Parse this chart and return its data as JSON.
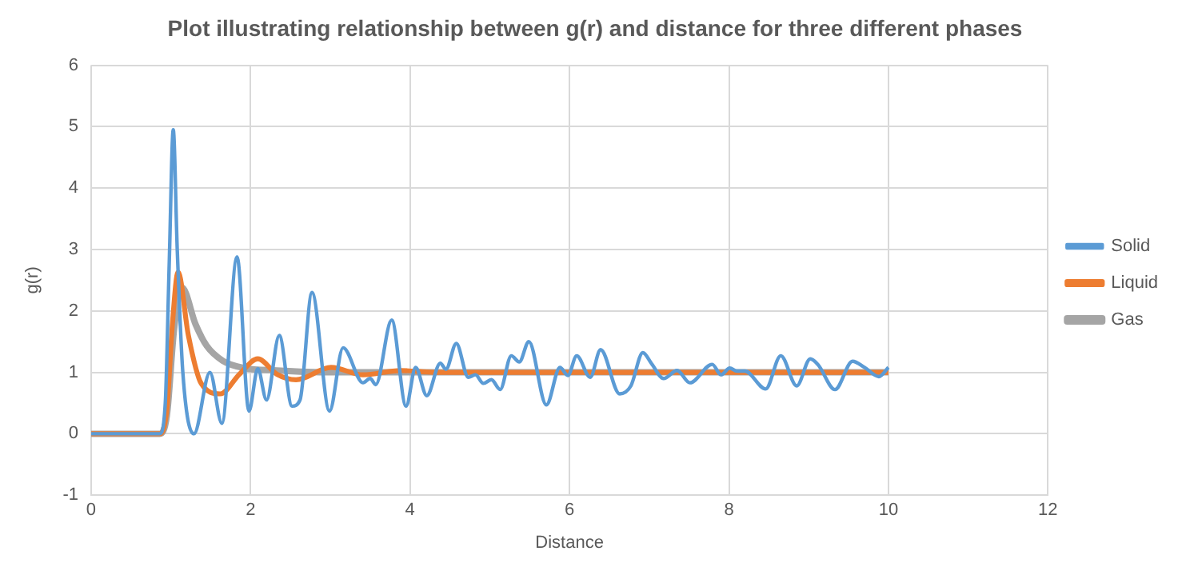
{
  "chart_data": {
    "type": "line",
    "title": "Plot illustrating relationship between g(r) and distance for three different phases",
    "xlabel": "Distance",
    "ylabel": "g(r)",
    "xlim": [
      0,
      12
    ],
    "xticks": [
      0,
      2,
      4,
      6,
      8,
      10,
      12
    ],
    "ylim": [
      -1,
      6
    ],
    "yticks": [
      -1,
      0,
      1,
      2,
      3,
      4,
      5,
      6
    ],
    "grid": true,
    "legend": "right",
    "marker": "none",
    "line_style": "solid",
    "series": [
      {
        "name": "Solid",
        "color": "#5b9bd5",
        "x": [
          0,
          0.86,
          0.93,
          0.98,
          1.03,
          1.08,
          1.15,
          1.29,
          1.49,
          1.64,
          1.83,
          1.98,
          2.09,
          2.2,
          2.36,
          2.52,
          2.62,
          2.77,
          2.99,
          3.16,
          3.41,
          3.5,
          3.57,
          3.77,
          3.95,
          4.07,
          4.21,
          4.38,
          4.45,
          4.58,
          4.73,
          4.82,
          4.92,
          5.02,
          5.13,
          5.27,
          5.37,
          5.49,
          5.71,
          5.88,
          5.98,
          6.09,
          6.26,
          6.39,
          6.63,
          6.77,
          6.92,
          7.03,
          7.18,
          7.35,
          7.51,
          7.79,
          7.9,
          8.01,
          8.1,
          8.2,
          8.46,
          8.65,
          8.85,
          9.02,
          9.12,
          9.33,
          9.55,
          9.7,
          9.88,
          10
        ],
        "values": [
          0,
          0,
          0.5,
          2.8,
          4.95,
          3.0,
          1.0,
          0,
          1.0,
          0.17,
          2.88,
          0.37,
          1.06,
          0.55,
          1.6,
          0.45,
          0.55,
          2.3,
          0.37,
          1.4,
          0.83,
          0.9,
          0.8,
          1.85,
          0.45,
          1.08,
          0.62,
          1.15,
          1.05,
          1.47,
          0.92,
          0.96,
          0.82,
          0.88,
          0.72,
          1.27,
          1.17,
          1.5,
          0.47,
          1.08,
          0.95,
          1.27,
          0.92,
          1.37,
          0.65,
          0.78,
          1.32,
          1.14,
          0.9,
          1.03,
          0.83,
          1.13,
          0.96,
          1.07,
          1.02,
          1.02,
          0.73,
          1.27,
          0.78,
          1.22,
          1.12,
          0.72,
          1.18,
          1.08,
          0.93,
          1.08
        ]
      },
      {
        "name": "Liquid",
        "color": "#ed7d31",
        "x": [
          0,
          0.86,
          0.95,
          1.02,
          1.09,
          1.22,
          1.38,
          1.62,
          1.86,
          2.09,
          2.33,
          2.57,
          3.01,
          3.41,
          3.88,
          4.3,
          5,
          6,
          7,
          8,
          9,
          10
        ],
        "values": [
          0,
          0,
          0.4,
          1.8,
          2.63,
          1.6,
          0.82,
          0.65,
          0.97,
          1.22,
          0.97,
          0.88,
          1.08,
          0.96,
          1.03,
          1.0,
          1.0,
          1.0,
          1.0,
          1.0,
          1.0,
          1.0
        ]
      },
      {
        "name": "Gas",
        "color": "#a5a5a5",
        "x": [
          0,
          0.86,
          0.95,
          1.04,
          1.14,
          1.31,
          1.45,
          1.65,
          1.92,
          2.33,
          3,
          4,
          5,
          6,
          7,
          8,
          9,
          10
        ],
        "values": [
          0,
          0,
          0.3,
          1.7,
          2.38,
          1.78,
          1.43,
          1.19,
          1.07,
          1.03,
          1.0,
          1.0,
          1.0,
          1.0,
          1.0,
          1.0,
          1.0,
          1.0
        ]
      }
    ]
  }
}
